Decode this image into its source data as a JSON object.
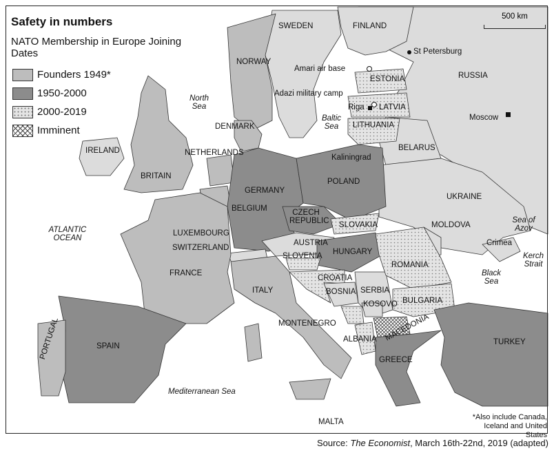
{
  "title": "Safety in numbers",
  "subtitle": "NATO Membership in Europe Joining Dates",
  "legend": [
    {
      "label": "Founders 1949*",
      "pattern": "founders"
    },
    {
      "label": "1950-2000",
      "pattern": "1950-2000"
    },
    {
      "label": "2000-2019",
      "pattern": "2000-2019"
    },
    {
      "label": "Imminent",
      "pattern": "imminent"
    }
  ],
  "colors": {
    "founders": "#bdbdbd",
    "mid": "#8c8c8c",
    "recent": "#e4e4e4",
    "non_member": "#dcdcdc",
    "sea": "#ffffff"
  },
  "scale": "500 km",
  "countries": {
    "sweden": "SWEDEN",
    "finland": "FINLAND",
    "norway": "NORWAY",
    "russia": "RUSSIA",
    "estonia": "ESTONIA",
    "latvia": "LATVIA",
    "lithuania": "LITHUANIA",
    "denmark": "DENMARK",
    "belarus": "BELARUS",
    "ireland": "IRELAND",
    "britain": "BRITAIN",
    "netherlands": "NETHERLANDS",
    "germany": "GERMANY",
    "poland": "POLAND",
    "belgium": "BELGIUM",
    "ukraine": "UKRAINE",
    "czech": "CZECH REPUBLIC",
    "slovakia": "SLOVAKIA",
    "luxembourg": "LUXEMBOURG",
    "moldova": "MOLDOVA",
    "switzerland": "SWITZERLAND",
    "austria": "AUSTRIA",
    "hungary": "HUNGARY",
    "slovenia": "SLOVENIA",
    "romania": "ROMANIA",
    "france": "FRANCE",
    "croatia": "CROATIA",
    "italy": "ITALY",
    "bosnia": "BOSNIA",
    "serbia": "SERBIA",
    "kosovo": "KOSOVO",
    "bulgaria": "BULGARIA",
    "montenegro": "MONTENEGRO",
    "macedonia": "MACEDONIA",
    "albania": "ALBANIA",
    "portugal": "PORTUGAL",
    "spain": "SPAIN",
    "turkey": "TURKEY",
    "greece": "GREECE",
    "malta": "MALTA"
  },
  "places": {
    "st_petersburg": "St Petersburg",
    "amari": "Amari air base",
    "adazi": "Adazi military camp",
    "riga": "Riga",
    "moscow": "Moscow",
    "kaliningrad": "Kaliningrad",
    "crimea": "Crimea"
  },
  "seas": {
    "north_sea": "North Sea",
    "baltic_sea": "Baltic Sea",
    "atlantic": "ATLANTIC OCEAN",
    "azov": "Sea of Azov",
    "kerch": "Kerch Strait",
    "black_sea": "Black Sea",
    "mediterranean": "Mediterranean Sea"
  },
  "footnote": "*Also include Canada, Iceland and United States",
  "source": {
    "prefix": "Source: ",
    "publication": "The Economist",
    "suffix": ", March 16th-22nd, 2019 (adapted)"
  }
}
